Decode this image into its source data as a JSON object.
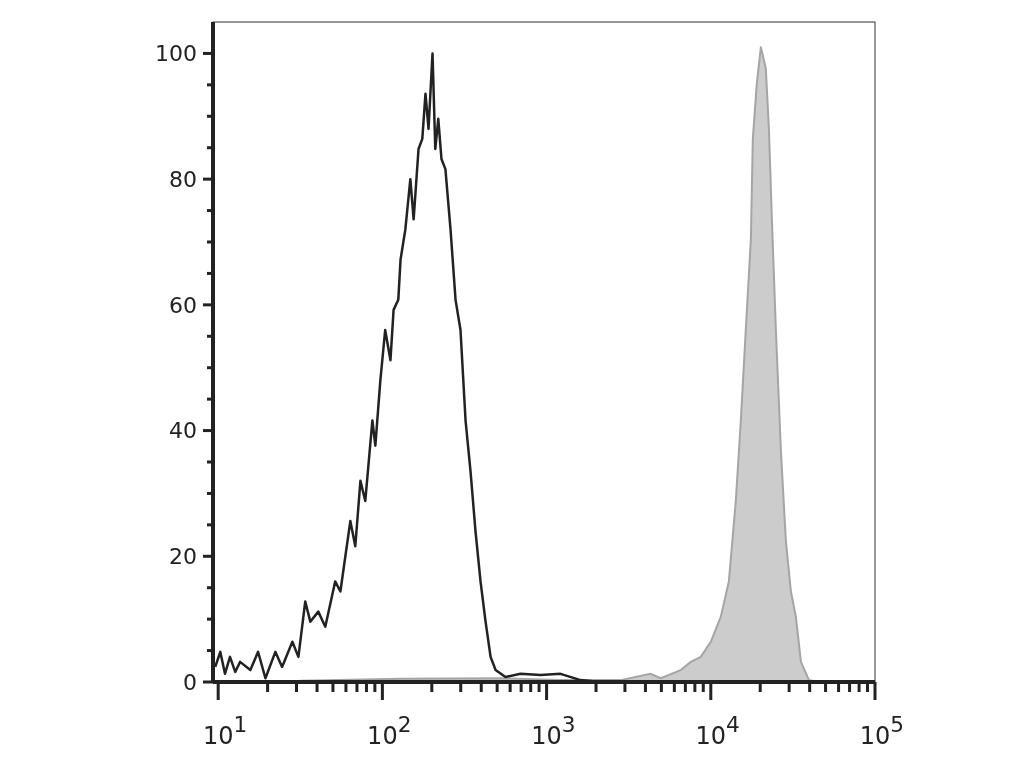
{
  "chart_data": {
    "type": "line",
    "log": "x",
    "xlim": [
      9.3,
      100000
    ],
    "ylim": [
      0,
      105
    ],
    "xticks": [
      {
        "value": 10,
        "label": "10$^{1}$"
      },
      {
        "value": 20,
        "label": null
      },
      {
        "value": 30,
        "label": null
      },
      {
        "value": 40,
        "label": null
      },
      {
        "value": 50,
        "label": null
      },
      {
        "value": 60,
        "label": null
      },
      {
        "value": 70,
        "label": null
      },
      {
        "value": 80,
        "label": null
      },
      {
        "value": 90,
        "label": null
      },
      {
        "value": 100,
        "label": "10$^{2}$"
      },
      {
        "value": 200,
        "label": null
      },
      {
        "value": 300,
        "label": null
      },
      {
        "value": 400,
        "label": null
      },
      {
        "value": 500,
        "label": null
      },
      {
        "value": 600,
        "label": null
      },
      {
        "value": 700,
        "label": null
      },
      {
        "value": 800,
        "label": null
      },
      {
        "value": 900,
        "label": null
      },
      {
        "value": 1000,
        "label": "10$^{3}$"
      },
      {
        "value": 2000,
        "label": null
      },
      {
        "value": 3000,
        "label": null
      },
      {
        "value": 4000,
        "label": null
      },
      {
        "value": 5000,
        "label": null
      },
      {
        "value": 6000,
        "label": null
      },
      {
        "value": 7000,
        "label": null
      },
      {
        "value": 8000,
        "label": null
      },
      {
        "value": 9000,
        "label": null
      },
      {
        "value": 10000,
        "label": "10$^{4}$"
      },
      {
        "value": 20000,
        "label": null
      },
      {
        "value": 30000,
        "label": null
      },
      {
        "value": 40000,
        "label": null
      },
      {
        "value": 50000,
        "label": null
      },
      {
        "value": 60000,
        "label": null
      },
      {
        "value": 70000,
        "label": null
      },
      {
        "value": 80000,
        "label": null
      },
      {
        "value": 90000,
        "label": null
      },
      {
        "value": 100000,
        "label": "10$^{5}$"
      }
    ],
    "yticks": [
      0,
      {
        "value": 5,
        "label": null
      },
      {
        "value": 10,
        "label": null
      },
      {
        "value": 15,
        "label": null
      },
      20,
      {
        "value": 25,
        "label": null
      },
      {
        "value": 30,
        "label": null
      },
      {
        "value": 35,
        "label": null
      },
      40,
      {
        "value": 45,
        "label": null
      },
      {
        "value": 50,
        "label": null
      },
      {
        "value": 55,
        "label": null
      },
      60,
      {
        "value": 65,
        "label": null
      },
      {
        "value": 70,
        "label": null
      },
      {
        "value": 75,
        "label": null
      },
      80,
      {
        "value": 85,
        "label": null
      },
      {
        "value": 90,
        "label": null
      },
      {
        "value": 95,
        "label": null
      },
      100
    ],
    "grid": false,
    "series": [
      {
        "type": "area",
        "color": "#cccccc",
        "x": [
          31.6,
          129,
          525,
          1216,
          2825,
          4306,
          4955,
          6561,
          7551,
          8690,
          10000,
          11510,
          12880,
          14200,
          15240,
          16330,
          17540,
          18030,
          19060,
          20180,
          21630,
          22590,
          23550,
          24910,
          26730,
          28660,
          30760,
          32960,
          35400,
          39630,
          46900
        ],
        "values": [
          0.2,
          0.5,
          0.6,
          0.3,
          0.3,
          1.3,
          0.6,
          1.9,
          3.2,
          4,
          6.4,
          10.4,
          16,
          28.8,
          41.6,
          56,
          70.4,
          86.4,
          95.2,
          101,
          97.6,
          88,
          73.6,
          56,
          36.8,
          22.4,
          14.4,
          10.4,
          3.2,
          0.3,
          0
        ]
      },
      {
        "color": "#222222",
        "x": [
          9.6,
          10.3,
          11.0,
          11.8,
          12.7,
          13.6,
          15.7,
          17.5,
          19.4,
          22.3,
          24.5,
          28.3,
          30.8,
          33.9,
          36.4,
          40.7,
          44.9,
          51.6,
          55.5,
          59.5,
          63.8,
          68.4,
          73.5,
          78.7,
          86.9,
          90.6,
          97.2,
          104,
          112,
          117,
          125,
          129,
          138,
          148,
          155,
          166,
          175,
          183,
          191,
          202,
          210,
          219,
          229,
          242,
          260,
          279,
          299,
          321,
          344,
          369,
          396,
          425,
          456,
          489,
          562,
          694,
          918,
          1216,
          1610,
          2133
        ],
        "values": [
          2.4,
          4.8,
          1.3,
          4,
          1.6,
          3.2,
          1.9,
          4.8,
          0.6,
          4.8,
          2.4,
          6.4,
          4,
          12.8,
          9.6,
          11.2,
          8.8,
          16,
          14.4,
          20,
          25.6,
          21.6,
          32,
          28.8,
          41.6,
          37.6,
          48,
          56,
          51.2,
          59.2,
          60.8,
          67.2,
          72,
          80,
          73.6,
          84.8,
          86.4,
          93.6,
          88,
          100,
          84.8,
          89.6,
          83.2,
          81.6,
          72,
          60.8,
          56,
          41.6,
          33.6,
          24,
          16,
          9.6,
          4,
          1.9,
          0.8,
          1.3,
          1.1,
          1.3,
          0.3,
          0
        ]
      }
    ]
  }
}
